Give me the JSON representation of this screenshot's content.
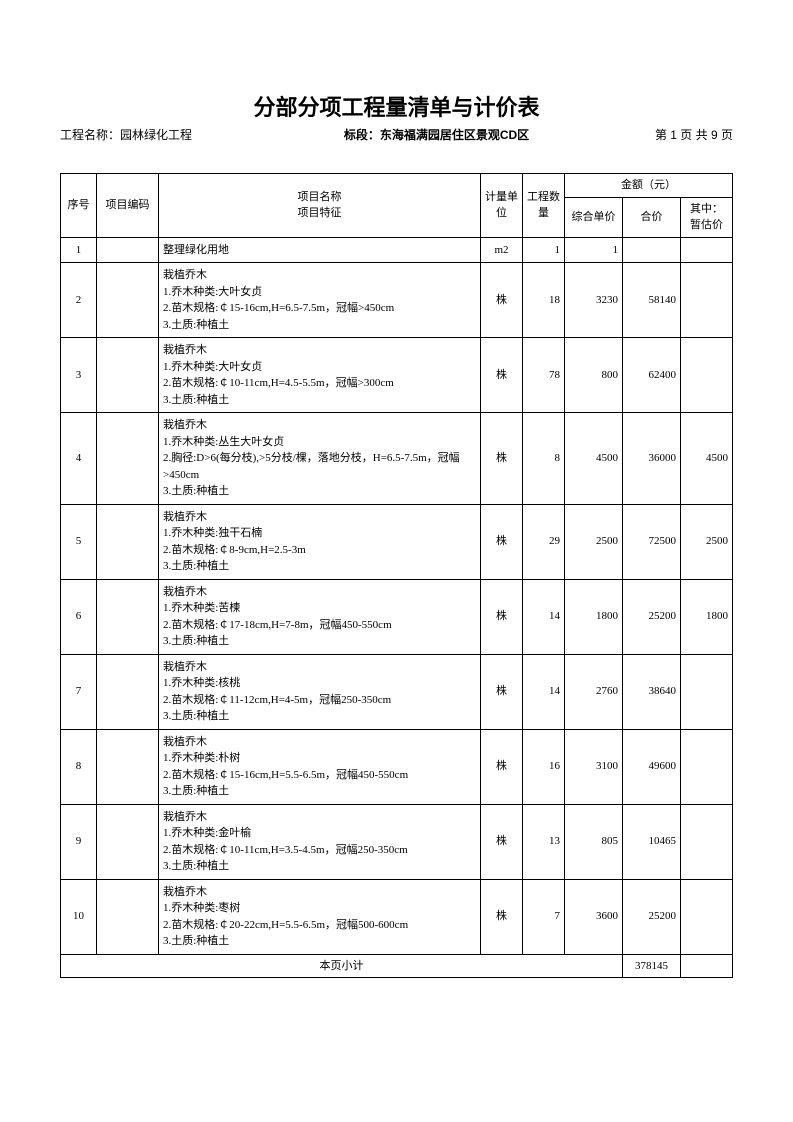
{
  "title": "分部分项工程量清单与计价表",
  "meta": {
    "project_label": "工程名称：",
    "project_name": "园林绿化工程",
    "section_label": "标段：",
    "section_name": "东海福满园居住区景观CD区",
    "page_info": "第 1 页  共 9 页"
  },
  "headers": {
    "seq": "序号",
    "code": "项目编码",
    "desc": "项目名称\n项目特征",
    "unit": "计量单位",
    "qty": "工程数量",
    "amount_group": "金额（元）",
    "unit_price": "综合单价",
    "sum": "合价",
    "estimate": "其中：暂估价"
  },
  "rows": [
    {
      "seq": "1",
      "code": "",
      "desc": "整理绿化用地",
      "unit": "m2",
      "qty": "1",
      "unit_price": "1",
      "sum": "",
      "est": ""
    },
    {
      "seq": "2",
      "code": "",
      "desc": "栽植乔木\n1.乔木种类:大叶女贞\n2.苗木规格:￠15-16cm,H=6.5-7.5m，冠幅>450cm\n3.土质:种植土",
      "unit": "株",
      "qty": "18",
      "unit_price": "3230",
      "sum": "58140",
      "est": ""
    },
    {
      "seq": "3",
      "code": "",
      "desc": "栽植乔木\n1.乔木种类:大叶女贞\n2.苗木规格:￠10-11cm,H=4.5-5.5m，冠幅>300cm\n3.土质:种植土",
      "unit": "株",
      "qty": "78",
      "unit_price": "800",
      "sum": "62400",
      "est": ""
    },
    {
      "seq": "4",
      "code": "",
      "desc": "栽植乔木\n1.乔木种类:丛生大叶女贞\n2.胸径:D>6(每分枝),>5分枝/棵，落地分枝，H=6.5-7.5m，冠幅>450cm\n3.土质:种植土",
      "unit": "株",
      "qty": "8",
      "unit_price": "4500",
      "sum": "36000",
      "est": "4500"
    },
    {
      "seq": "5",
      "code": "",
      "desc": "栽植乔木\n1.乔木种类:独干石楠\n2.苗木规格:￠8-9cm,H=2.5-3m\n3.土质:种植土",
      "unit": "株",
      "qty": "29",
      "unit_price": "2500",
      "sum": "72500",
      "est": "2500"
    },
    {
      "seq": "6",
      "code": "",
      "desc": "栽植乔木\n1.乔木种类:苦楝\n2.苗木规格:￠17-18cm,H=7-8m，冠幅450-550cm\n3.土质:种植土",
      "unit": "株",
      "qty": "14",
      "unit_price": "1800",
      "sum": "25200",
      "est": "1800"
    },
    {
      "seq": "7",
      "code": "",
      "desc": "栽植乔木\n1.乔木种类:核桃\n2.苗木规格:￠11-12cm,H=4-5m，冠幅250-350cm\n3.土质:种植土",
      "unit": "株",
      "qty": "14",
      "unit_price": "2760",
      "sum": "38640",
      "est": ""
    },
    {
      "seq": "8",
      "code": "",
      "desc": "栽植乔木\n1.乔木种类:朴树\n2.苗木规格:￠15-16cm,H=5.5-6.5m，冠幅450-550cm\n3.土质:种植土",
      "unit": "株",
      "qty": "16",
      "unit_price": "3100",
      "sum": "49600",
      "est": ""
    },
    {
      "seq": "9",
      "code": "",
      "desc": "栽植乔木\n1.乔木种类:金叶榆\n2.苗木规格:￠10-11cm,H=3.5-4.5m，冠幅250-350cm\n3.土质:种植土",
      "unit": "株",
      "qty": "13",
      "unit_price": "805",
      "sum": "10465",
      "est": ""
    },
    {
      "seq": "10",
      "code": "",
      "desc": "栽植乔木\n1.乔木种类:枣树\n2.苗木规格:￠20-22cm,H=5.5-6.5m，冠幅500-600cm\n3.土质:种植土",
      "unit": "株",
      "qty": "7",
      "unit_price": "3600",
      "sum": "25200",
      "est": ""
    }
  ],
  "subtotal": {
    "label": "本页小计",
    "sum": "378145"
  }
}
